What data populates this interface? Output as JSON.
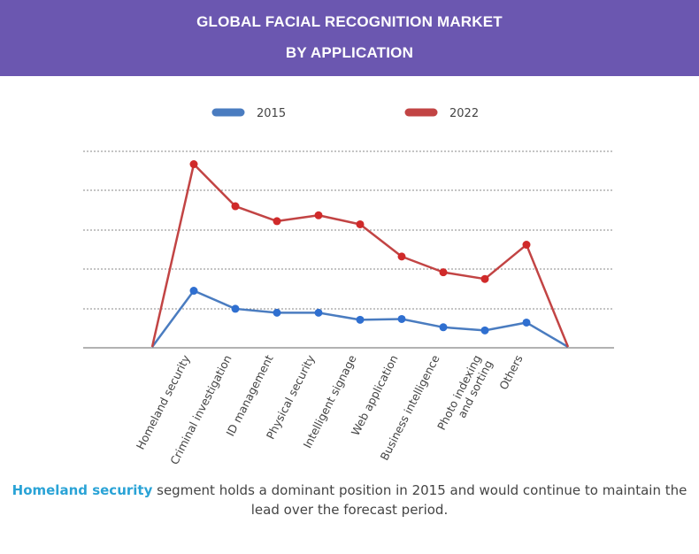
{
  "header": {
    "title_line1": "GLOBAL FACIAL RECOGNITION MARKET",
    "title_line2": "BY APPLICATION"
  },
  "caption": {
    "highlight": "Homeland security",
    "rest": " segment holds a dominant position in 2015 and would continue to maintain the lead over the forecast period."
  },
  "colors": {
    "header_bg": "#6b57b0",
    "series_2015": "#4a7cc0",
    "series_2022": "#c24444",
    "highlight": "#2aa3d6"
  },
  "chart_data": {
    "type": "line",
    "title": "",
    "xlabel": "",
    "ylabel": "",
    "grid": true,
    "legend_position": "top",
    "ylim": [
      0,
      5
    ],
    "categories": [
      "",
      "Homeland security",
      "Criminal investigation",
      "ID management",
      "Physical security",
      "Intelligent signage",
      "Web application",
      "Business intelligence",
      "Photo indexing and sorting",
      "Others",
      ""
    ],
    "series": [
      {
        "name": "2015",
        "values": [
          0,
          1.43,
          0.97,
          0.87,
          0.87,
          0.69,
          0.71,
          0.5,
          0.42,
          0.62,
          0
        ]
      },
      {
        "name": "2022",
        "values": [
          0,
          4.65,
          3.58,
          3.2,
          3.35,
          3.12,
          2.3,
          1.9,
          1.73,
          2.6,
          0
        ]
      }
    ]
  }
}
